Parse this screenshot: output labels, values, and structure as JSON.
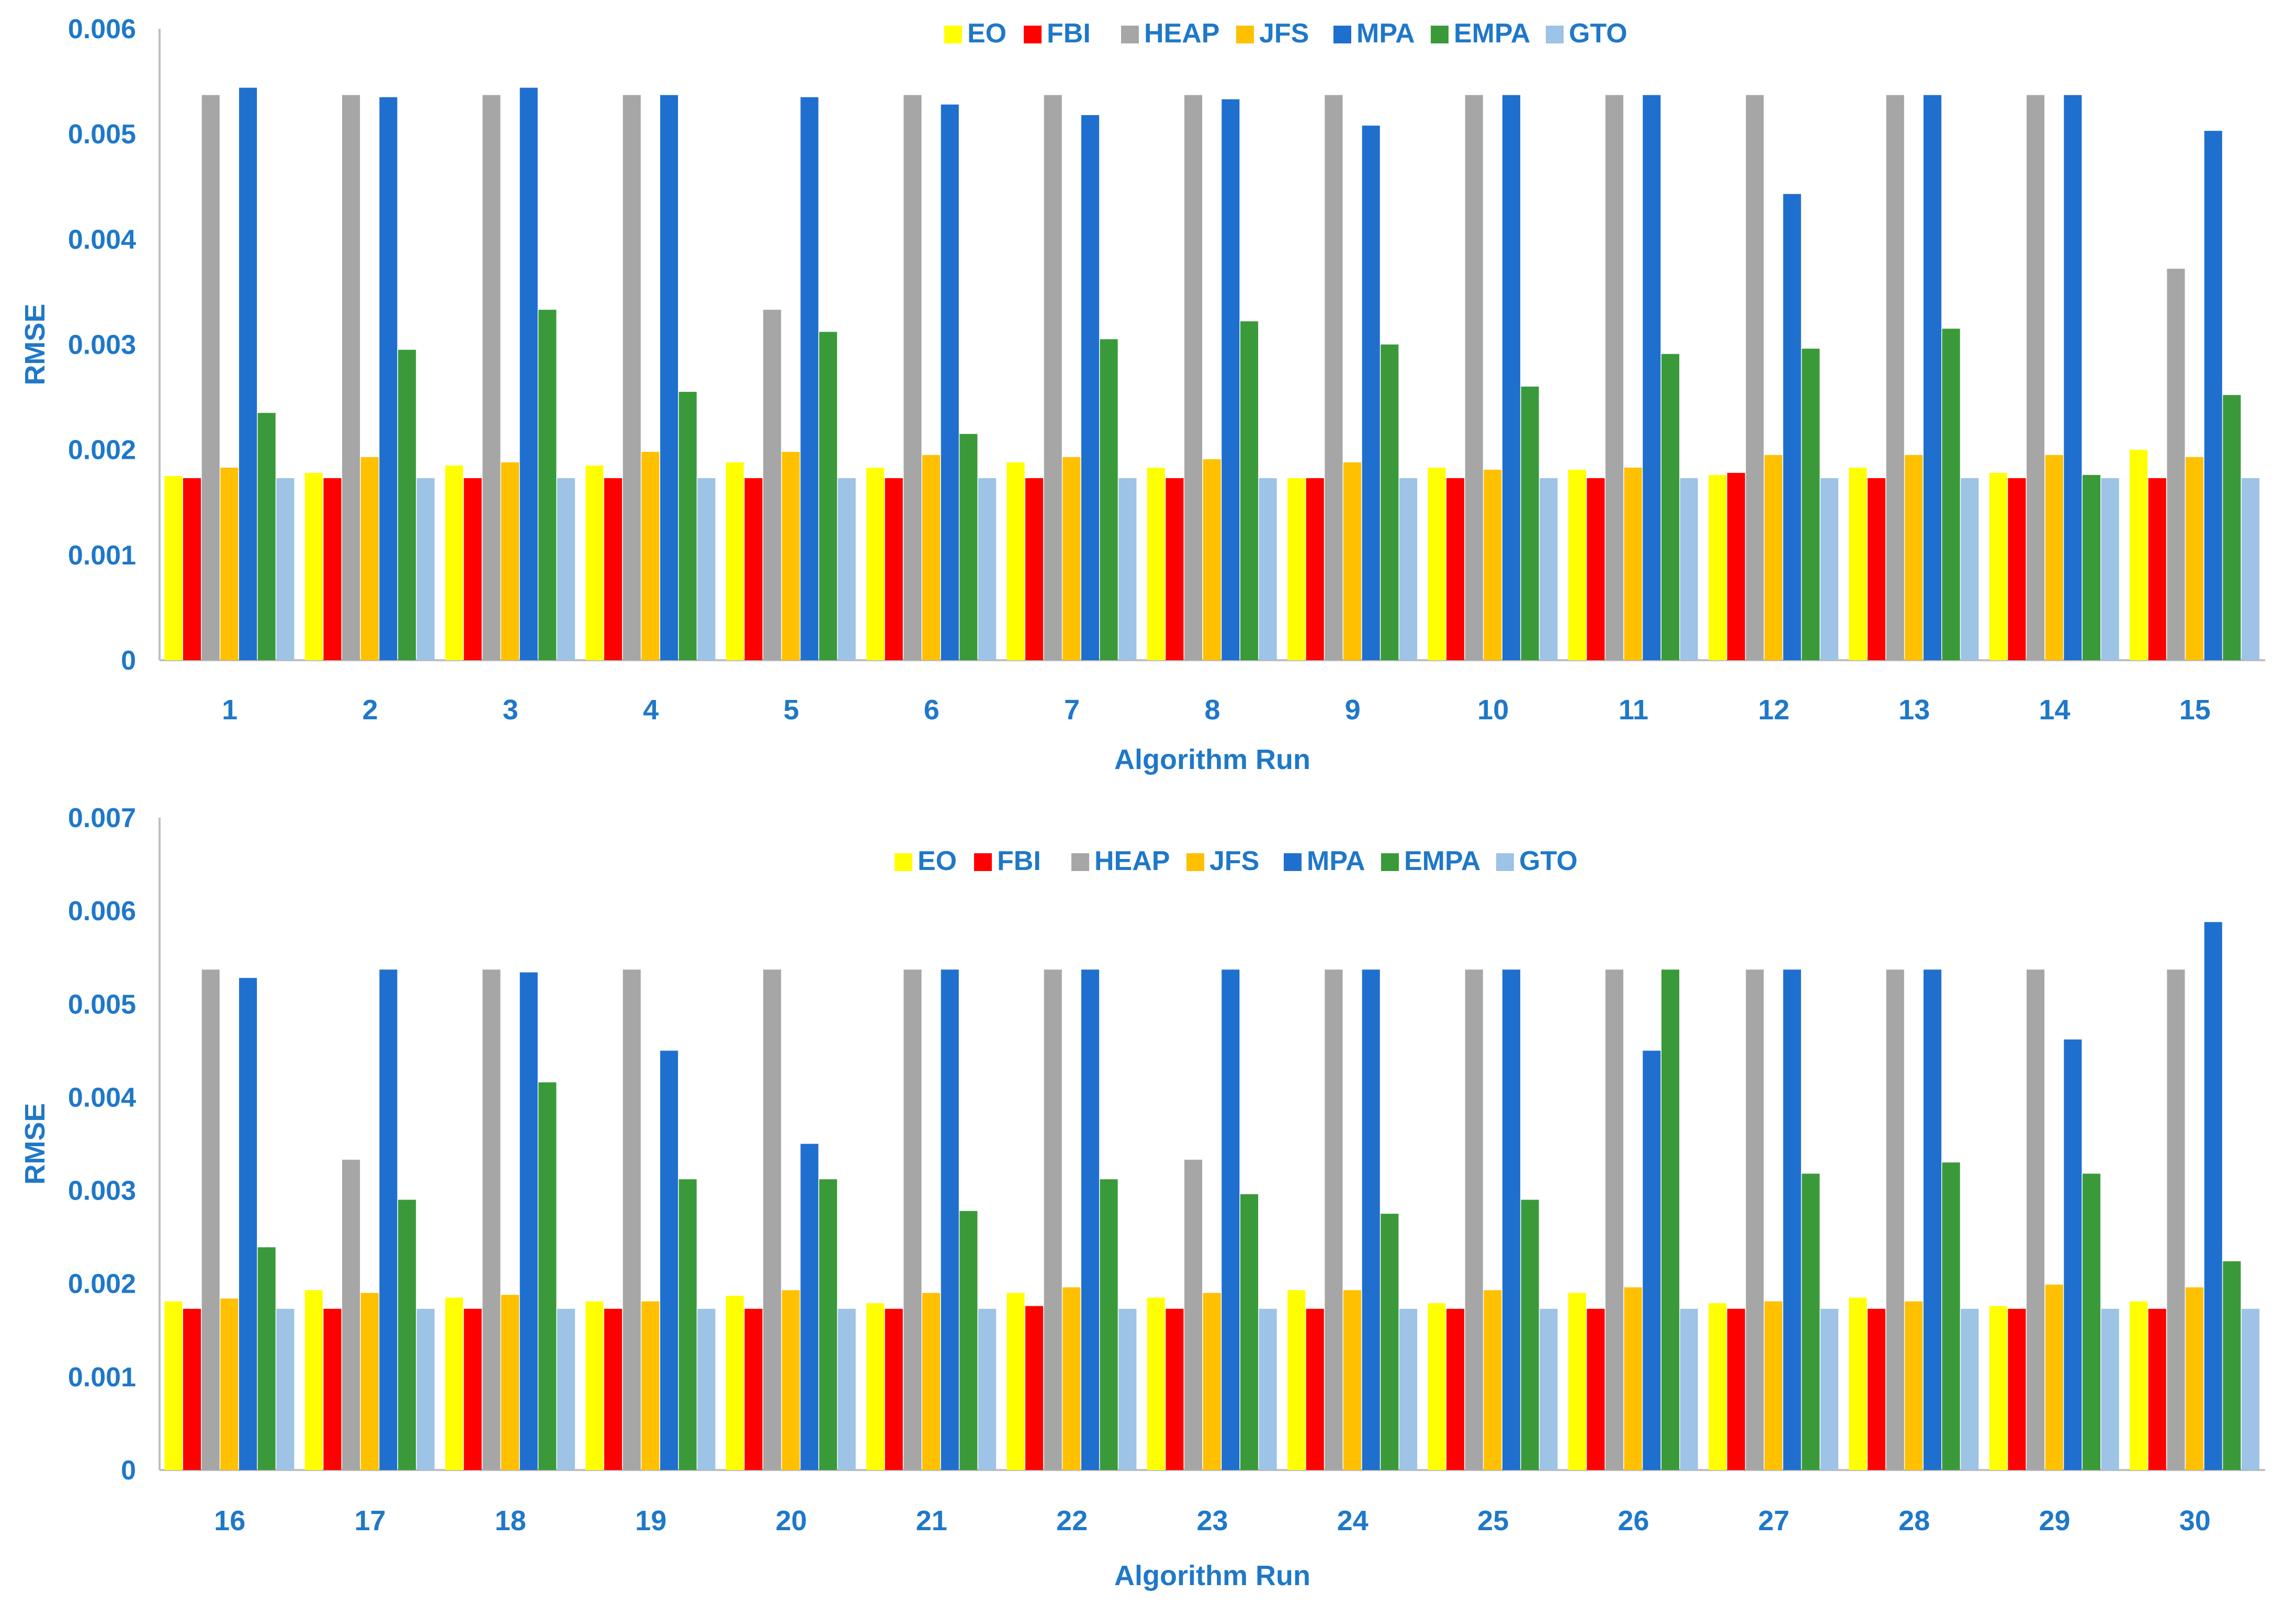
{
  "chart_data": [
    {
      "type": "bar",
      "title": "",
      "xlabel": "Algorithm Run",
      "ylabel": "RMSE",
      "ylim": [
        0,
        0.006
      ],
      "yticks": [
        "0",
        "0.001",
        "0.002",
        "0.003",
        "0.004",
        "0.005",
        "0.006"
      ],
      "legend_position": "top",
      "categories": [
        "1",
        "2",
        "3",
        "4",
        "5",
        "6",
        "7",
        "8",
        "9",
        "10",
        "11",
        "12",
        "13",
        "14",
        "15"
      ],
      "series": [
        {
          "name": "EO",
          "color": "#ffff00",
          "values": [
            0.00175,
            0.00178,
            0.00185,
            0.00185,
            0.00188,
            0.00183,
            0.00188,
            0.00183,
            0.00173,
            0.00183,
            0.00181,
            0.00176,
            0.00183,
            0.00178,
            0.002
          ]
        },
        {
          "name": "FBI",
          "color": "#ff0000",
          "values": [
            0.00173,
            0.00173,
            0.00173,
            0.00173,
            0.00173,
            0.00173,
            0.00173,
            0.00173,
            0.00173,
            0.00173,
            0.00173,
            0.00178,
            0.00173,
            0.00173,
            0.00173
          ]
        },
        {
          "name": "HEAP",
          "color": "#a6a6a6",
          "values": [
            0.00537,
            0.00537,
            0.00537,
            0.00537,
            0.00333,
            0.00537,
            0.00537,
            0.00537,
            0.00537,
            0.00537,
            0.00537,
            0.00537,
            0.00537,
            0.00537,
            0.00372
          ]
        },
        {
          "name": "JFS",
          "color": "#ffc000",
          "values": [
            0.00183,
            0.00193,
            0.00188,
            0.00198,
            0.00198,
            0.00195,
            0.00193,
            0.00191,
            0.00188,
            0.00181,
            0.00183,
            0.00195,
            0.00195,
            0.00195,
            0.00193
          ]
        },
        {
          "name": "MPA",
          "color": "#1f6fcf",
          "values": [
            0.00544,
            0.00535,
            0.00544,
            0.00537,
            0.00535,
            0.00528,
            0.00518,
            0.00533,
            0.00508,
            0.00537,
            0.00537,
            0.00443,
            0.00537,
            0.00537,
            0.00503
          ]
        },
        {
          "name": "EMPA",
          "color": "#3a9a3a",
          "values": [
            0.00235,
            0.00295,
            0.00333,
            0.00255,
            0.00312,
            0.00215,
            0.00305,
            0.00322,
            0.003,
            0.0026,
            0.00291,
            0.00296,
            0.00315,
            0.00176,
            0.00252
          ]
        },
        {
          "name": "GTO",
          "color": "#9dc3e6",
          "values": [
            0.00173,
            0.00173,
            0.00173,
            0.00173,
            0.00173,
            0.00173,
            0.00173,
            0.00173,
            0.00173,
            0.00173,
            0.00173,
            0.00173,
            0.00173,
            0.00173,
            0.00173
          ]
        }
      ]
    },
    {
      "type": "bar",
      "title": "",
      "xlabel": "Algorithm Run",
      "ylabel": "RMSE",
      "ylim": [
        0,
        0.007
      ],
      "yticks": [
        "0",
        "0.001",
        "0.002",
        "0.003",
        "0.004",
        "0.005",
        "0.006",
        "0.007"
      ],
      "legend_position": "top",
      "categories": [
        "16",
        "17",
        "18",
        "19",
        "20",
        "21",
        "22",
        "23",
        "24",
        "25",
        "26",
        "27",
        "28",
        "29",
        "30"
      ],
      "series": [
        {
          "name": "EO",
          "color": "#ffff00",
          "values": [
            0.00181,
            0.00193,
            0.00185,
            0.00181,
            0.00187,
            0.00179,
            0.0019,
            0.00185,
            0.00193,
            0.00179,
            0.0019,
            0.00179,
            0.00185,
            0.00176,
            0.00181
          ]
        },
        {
          "name": "FBI",
          "color": "#ff0000",
          "values": [
            0.00173,
            0.00173,
            0.00173,
            0.00173,
            0.00173,
            0.00173,
            0.00176,
            0.00173,
            0.00173,
            0.00173,
            0.00173,
            0.00173,
            0.00173,
            0.00173,
            0.00173
          ]
        },
        {
          "name": "HEAP",
          "color": "#a6a6a6",
          "values": [
            0.00537,
            0.00333,
            0.00537,
            0.00537,
            0.00537,
            0.00537,
            0.00537,
            0.00333,
            0.00537,
            0.00537,
            0.00537,
            0.00537,
            0.00537,
            0.00537,
            0.00537
          ]
        },
        {
          "name": "JFS",
          "color": "#ffc000",
          "values": [
            0.00184,
            0.0019,
            0.00188,
            0.00181,
            0.00193,
            0.0019,
            0.00196,
            0.0019,
            0.00193,
            0.00193,
            0.00196,
            0.00181,
            0.00181,
            0.00199,
            0.00196
          ]
        },
        {
          "name": "MPA",
          "color": "#1f6fcf",
          "values": [
            0.00528,
            0.00537,
            0.00534,
            0.0045,
            0.0035,
            0.00537,
            0.00537,
            0.00537,
            0.00537,
            0.00537,
            0.0045,
            0.00537,
            0.00537,
            0.00462,
            0.00588
          ]
        },
        {
          "name": "EMPA",
          "color": "#3a9a3a",
          "values": [
            0.00239,
            0.0029,
            0.00416,
            0.00312,
            0.00312,
            0.00278,
            0.00312,
            0.00296,
            0.00275,
            0.0029,
            0.00537,
            0.00318,
            0.0033,
            0.00318,
            0.00224
          ]
        },
        {
          "name": "GTO",
          "color": "#9dc3e6",
          "values": [
            0.00173,
            0.00173,
            0.00173,
            0.00173,
            0.00173,
            0.00173,
            0.00173,
            0.00173,
            0.00173,
            0.00173,
            0.00173,
            0.00173,
            0.00173,
            0.00173,
            0.00173
          ]
        }
      ]
    }
  ]
}
